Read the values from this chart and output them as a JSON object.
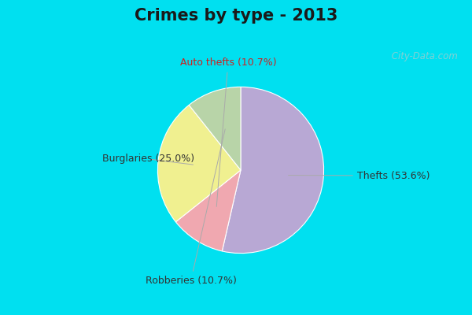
{
  "title": "Crimes by type - 2013",
  "slices": [
    {
      "label": "Thefts (53.6%)",
      "value": 53.6,
      "color": "#b8a8d4"
    },
    {
      "label": "Auto thefts (10.7%)",
      "value": 10.7,
      "color": "#f0a8b0"
    },
    {
      "label": "Burglaries (25.0%)",
      "value": 25.0,
      "color": "#f0f090"
    },
    {
      "label": "Robberies (10.7%)",
      "value": 10.7,
      "color": "#b8d4a8"
    }
  ],
  "bg_color_top": "#00e0f0",
  "bg_color_main_top": "#c0e8d8",
  "bg_color_main_bottom": "#d8f0e8",
  "title_fontsize": 15,
  "label_fontsize": 9,
  "watermark": " City-Data.com"
}
